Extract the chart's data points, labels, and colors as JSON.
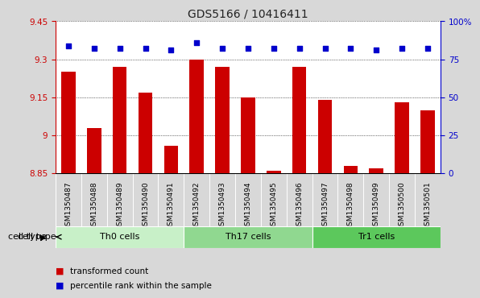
{
  "title": "GDS5166 / 10416411",
  "samples": [
    "GSM1350487",
    "GSM1350488",
    "GSM1350489",
    "GSM1350490",
    "GSM1350491",
    "GSM1350492",
    "GSM1350493",
    "GSM1350494",
    "GSM1350495",
    "GSM1350496",
    "GSM1350497",
    "GSM1350498",
    "GSM1350499",
    "GSM1350500",
    "GSM1350501"
  ],
  "transformed_count": [
    9.25,
    9.03,
    9.27,
    9.17,
    8.96,
    9.3,
    9.27,
    9.15,
    8.86,
    9.27,
    9.14,
    8.88,
    8.87,
    9.13,
    9.1
  ],
  "percentile_rank": [
    84,
    82,
    82,
    82,
    81,
    86,
    82,
    82,
    82,
    82,
    82,
    82,
    81,
    82,
    82
  ],
  "ylim_left": [
    8.85,
    9.45
  ],
  "ylim_right": [
    0,
    100
  ],
  "yticks_left": [
    8.85,
    9.0,
    9.15,
    9.3,
    9.45
  ],
  "yticks_right": [
    0,
    25,
    50,
    75,
    100
  ],
  "ytick_labels_left": [
    "8.85",
    "9",
    "9.15",
    "9.3",
    "9.45"
  ],
  "ytick_labels_right": [
    "0",
    "25",
    "50",
    "75",
    "100%"
  ],
  "bar_color": "#cc0000",
  "dot_color": "#0000cc",
  "groups": [
    {
      "label": "Th0 cells",
      "start": 0,
      "end": 4,
      "color": "#c8f0c8"
    },
    {
      "label": "Th17 cells",
      "start": 5,
      "end": 9,
      "color": "#90d890"
    },
    {
      "label": "Tr1 cells",
      "start": 10,
      "end": 14,
      "color": "#5cc85c"
    }
  ],
  "cell_type_label": "cell type",
  "legend_items": [
    {
      "label": "transformed count",
      "color": "#cc0000"
    },
    {
      "label": "percentile rank within the sample",
      "color": "#0000cc"
    }
  ],
  "background_color": "#d8d8d8",
  "plot_bg_color": "#ffffff",
  "xtick_bg_color": "#cccccc",
  "left_tick_color": "#cc0000",
  "right_tick_color": "#0000cc",
  "grid_color": "#000000",
  "title_fontsize": 10,
  "tick_fontsize": 7.5,
  "xtick_fontsize": 6.5,
  "label_fontsize": 8
}
